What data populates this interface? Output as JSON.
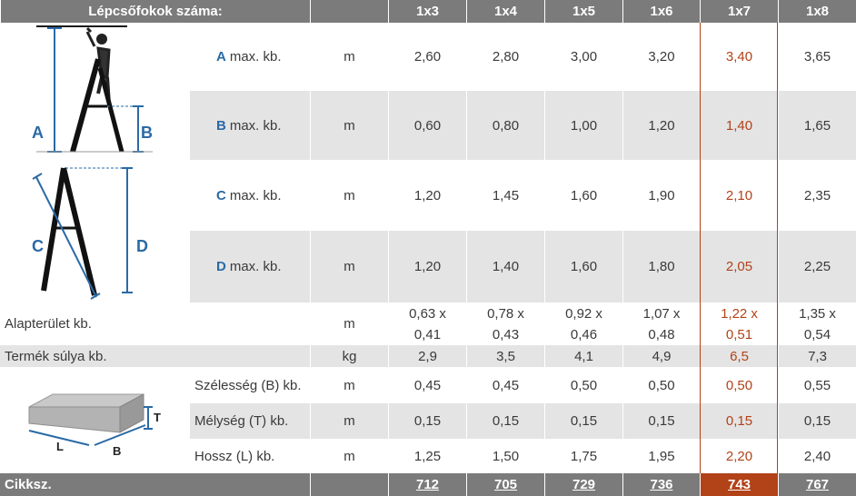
{
  "header": {
    "title": "Lépcsőfokok száma:",
    "columns": [
      "1x3",
      "1x4",
      "1x5",
      "1x6",
      "1x7",
      "1x8"
    ]
  },
  "rows": {
    "A": {
      "letter": "A",
      "text": "max. kb.",
      "unit": "m",
      "values": [
        "2,60",
        "2,80",
        "3,00",
        "3,20",
        "3,40",
        "3,65"
      ]
    },
    "B": {
      "letter": "B",
      "text": "max. kb.",
      "unit": "m",
      "values": [
        "0,60",
        "0,80",
        "1,00",
        "1,20",
        "1,40",
        "1,65"
      ]
    },
    "C": {
      "letter": "C",
      "text": "max. kb.",
      "unit": "m",
      "values": [
        "1,20",
        "1,45",
        "1,60",
        "1,90",
        "2,10",
        "2,35"
      ]
    },
    "D": {
      "letter": "D",
      "text": "max. kb.",
      "unit": "m",
      "values": [
        "1,20",
        "1,40",
        "1,60",
        "1,80",
        "2,05",
        "2,25"
      ]
    },
    "area": {
      "label": "Alapterület kb.",
      "unit": "m",
      "top": [
        "0,63 x",
        "0,78 x",
        "0,92 x",
        "1,07 x",
        "1,22 x",
        "1,35 x"
      ],
      "bottom": [
        "0,41",
        "0,43",
        "0,46",
        "0,48",
        "0,51",
        "0,54"
      ]
    },
    "weight": {
      "label": "Termék súlya kb.",
      "unit": "kg",
      "values": [
        "2,9",
        "3,5",
        "4,1",
        "4,9",
        "6,5",
        "7,3"
      ]
    },
    "width": {
      "label": "Szélesség (B) kb.",
      "unit": "m",
      "values": [
        "0,45",
        "0,45",
        "0,50",
        "0,50",
        "0,50",
        "0,55"
      ]
    },
    "depth": {
      "label": "Mélység (T) kb.",
      "unit": "m",
      "values": [
        "0,15",
        "0,15",
        "0,15",
        "0,15",
        "0,15",
        "0,15"
      ]
    },
    "length": {
      "label": "Hossz (L) kb.",
      "unit": "m",
      "values": [
        "1,25",
        "1,50",
        "1,75",
        "1,95",
        "2,20",
        "2,40"
      ]
    },
    "code": {
      "label": "Cikksz.",
      "values": [
        "712",
        "705",
        "729",
        "736",
        "743",
        "767"
      ]
    }
  },
  "diagram_labels": {
    "A": "A",
    "B": "B",
    "C": "C",
    "D": "D",
    "T": "T",
    "L": "L",
    "B2": "B"
  },
  "colors": {
    "header": "#7b7b7b",
    "stripe": "#e4e4e4",
    "highlight": "#b24218",
    "letter": "#2a6aa6"
  }
}
